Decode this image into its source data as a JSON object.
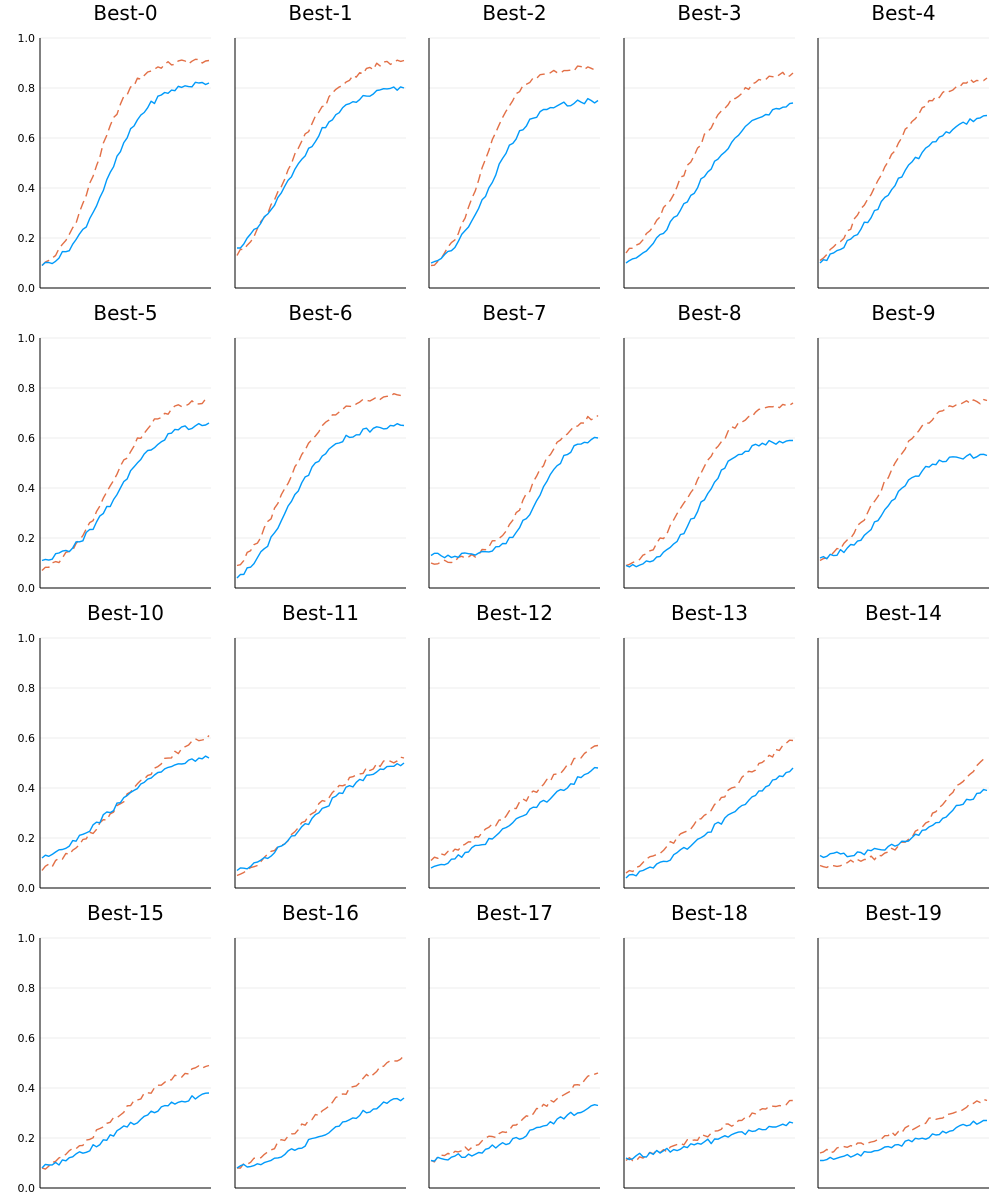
{
  "chart_data": {
    "type": "line",
    "layout": "small-multiples",
    "grid_rows": 4,
    "grid_cols": 5,
    "ylim": [
      0,
      1
    ],
    "yticks": [
      0.0,
      0.2,
      0.4,
      0.6,
      0.8,
      1.0
    ],
    "ytick_labels": [
      "0.0",
      "0.2",
      "0.4",
      "0.6",
      "0.8",
      "1.0"
    ],
    "x_points": 50,
    "grid": true,
    "series_styles": [
      {
        "key": "solid",
        "color": "#009AFA",
        "dash": "solid"
      },
      {
        "key": "dashed",
        "color": "#E26F46",
        "dash": "dashed"
      }
    ],
    "panels": [
      {
        "title": "Best-0",
        "solid": {
          "start": 0.09,
          "end": 0.82,
          "k": 8,
          "m": 0.4
        },
        "dashed": {
          "start": 0.09,
          "end": 0.91,
          "k": 9,
          "m": 0.32
        }
      },
      {
        "title": "Best-1",
        "solid": {
          "start": 0.16,
          "end": 0.8,
          "k": 6,
          "m": 0.32
        },
        "dashed": {
          "start": 0.13,
          "end": 0.91,
          "k": 6,
          "m": 0.3
        }
      },
      {
        "title": "Best-2",
        "solid": {
          "start": 0.1,
          "end": 0.75,
          "k": 8,
          "m": 0.35
        },
        "dashed": {
          "start": 0.09,
          "end": 0.88,
          "k": 9,
          "m": 0.3
        }
      },
      {
        "title": "Best-3",
        "solid": {
          "start": 0.1,
          "end": 0.74,
          "k": 5,
          "m": 0.42
        },
        "dashed": {
          "start": 0.14,
          "end": 0.86,
          "k": 6,
          "m": 0.35
        }
      },
      {
        "title": "Best-4",
        "solid": {
          "start": 0.1,
          "end": 0.69,
          "k": 5,
          "m": 0.4
        },
        "dashed": {
          "start": 0.11,
          "end": 0.84,
          "k": 6,
          "m": 0.35
        }
      },
      {
        "title": "Best-5",
        "solid": {
          "start": 0.11,
          "end": 0.66,
          "k": 7,
          "m": 0.45
        },
        "dashed": {
          "start": 0.07,
          "end": 0.75,
          "k": 7,
          "m": 0.4
        }
      },
      {
        "title": "Best-6",
        "solid": {
          "start": 0.04,
          "end": 0.65,
          "k": 7,
          "m": 0.3
        },
        "dashed": {
          "start": 0.09,
          "end": 0.77,
          "k": 7,
          "m": 0.28
        }
      },
      {
        "title": "Best-7",
        "solid": {
          "start": 0.13,
          "end": 0.6,
          "k": 10,
          "m": 0.65
        },
        "dashed": {
          "start": 0.1,
          "end": 0.69,
          "k": 8,
          "m": 0.6
        }
      },
      {
        "title": "Best-8",
        "solid": {
          "start": 0.09,
          "end": 0.59,
          "k": 9,
          "m": 0.45
        },
        "dashed": {
          "start": 0.09,
          "end": 0.74,
          "k": 7,
          "m": 0.4
        }
      },
      {
        "title": "Best-9",
        "solid": {
          "start": 0.12,
          "end": 0.53,
          "k": 8,
          "m": 0.4
        },
        "dashed": {
          "start": 0.11,
          "end": 0.75,
          "k": 7,
          "m": 0.38
        }
      },
      {
        "title": "Best-10",
        "solid": {
          "start": 0.12,
          "end": 0.52,
          "k": 5,
          "m": 0.4
        },
        "dashed": {
          "start": 0.07,
          "end": 0.61,
          "k": 4,
          "m": 0.45
        }
      },
      {
        "title": "Best-11",
        "solid": {
          "start": 0.07,
          "end": 0.5,
          "k": 5,
          "m": 0.45
        },
        "dashed": {
          "start": 0.05,
          "end": 0.52,
          "k": 5,
          "m": 0.4
        }
      },
      {
        "title": "Best-12",
        "solid": {
          "start": 0.08,
          "end": 0.48,
          "k": 3,
          "m": 0.6
        },
        "dashed": {
          "start": 0.11,
          "end": 0.57,
          "k": 3,
          "m": 0.6
        }
      },
      {
        "title": "Best-13",
        "solid": {
          "start": 0.04,
          "end": 0.48,
          "k": 3,
          "m": 0.65
        },
        "dashed": {
          "start": 0.06,
          "end": 0.59,
          "k": 3,
          "m": 0.55
        }
      },
      {
        "title": "Best-14",
        "solid": {
          "start": 0.13,
          "end": 0.39,
          "k": 6,
          "m": 0.75
        },
        "dashed": {
          "start": 0.09,
          "end": 0.52,
          "k": 6,
          "m": 0.75
        }
      },
      {
        "title": "Best-15",
        "solid": {
          "start": 0.08,
          "end": 0.38,
          "k": 4,
          "m": 0.45
        },
        "dashed": {
          "start": 0.08,
          "end": 0.49,
          "k": 4,
          "m": 0.4
        }
      },
      {
        "title": "Best-16",
        "solid": {
          "start": 0.08,
          "end": 0.36,
          "k": 4,
          "m": 0.55
        },
        "dashed": {
          "start": 0.08,
          "end": 0.53,
          "k": 3,
          "m": 0.5
        }
      },
      {
        "title": "Best-17",
        "solid": {
          "start": 0.11,
          "end": 0.33,
          "k": 4,
          "m": 0.65
        },
        "dashed": {
          "start": 0.11,
          "end": 0.46,
          "k": 3,
          "m": 0.7
        }
      },
      {
        "title": "Best-18",
        "solid": {
          "start": 0.12,
          "end": 0.26,
          "k": 3,
          "m": 0.55
        },
        "dashed": {
          "start": 0.11,
          "end": 0.35,
          "k": 3,
          "m": 0.6
        }
      },
      {
        "title": "Best-19",
        "solid": {
          "start": 0.11,
          "end": 0.27,
          "k": 3,
          "m": 0.65
        },
        "dashed": {
          "start": 0.14,
          "end": 0.35,
          "k": 3,
          "m": 0.65
        }
      }
    ]
  }
}
